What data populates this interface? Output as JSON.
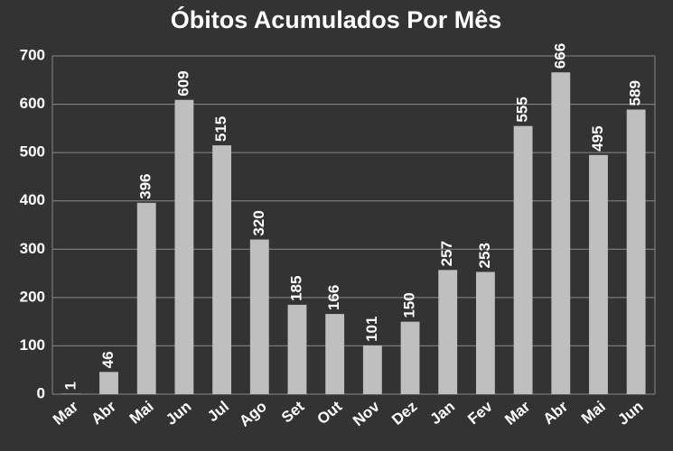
{
  "chart_data": {
    "type": "bar",
    "title": "Óbitos Acumulados Por Mês",
    "categories": [
      "Mar",
      "Abr",
      "Mai",
      "Jun",
      "Jul",
      "Ago",
      "Set",
      "Out",
      "Nov",
      "Dez",
      "Jan",
      "Fev",
      "Mar",
      "Abr",
      "Mai",
      "Jun"
    ],
    "values": [
      1,
      46,
      396,
      609,
      515,
      320,
      185,
      166,
      101,
      150,
      257,
      253,
      555,
      666,
      495,
      589
    ],
    "color": "#bfbfbf",
    "ylim": [
      0,
      700
    ],
    "yticks": [
      0,
      100,
      200,
      300,
      400,
      500,
      600,
      700
    ],
    "grid": true
  }
}
